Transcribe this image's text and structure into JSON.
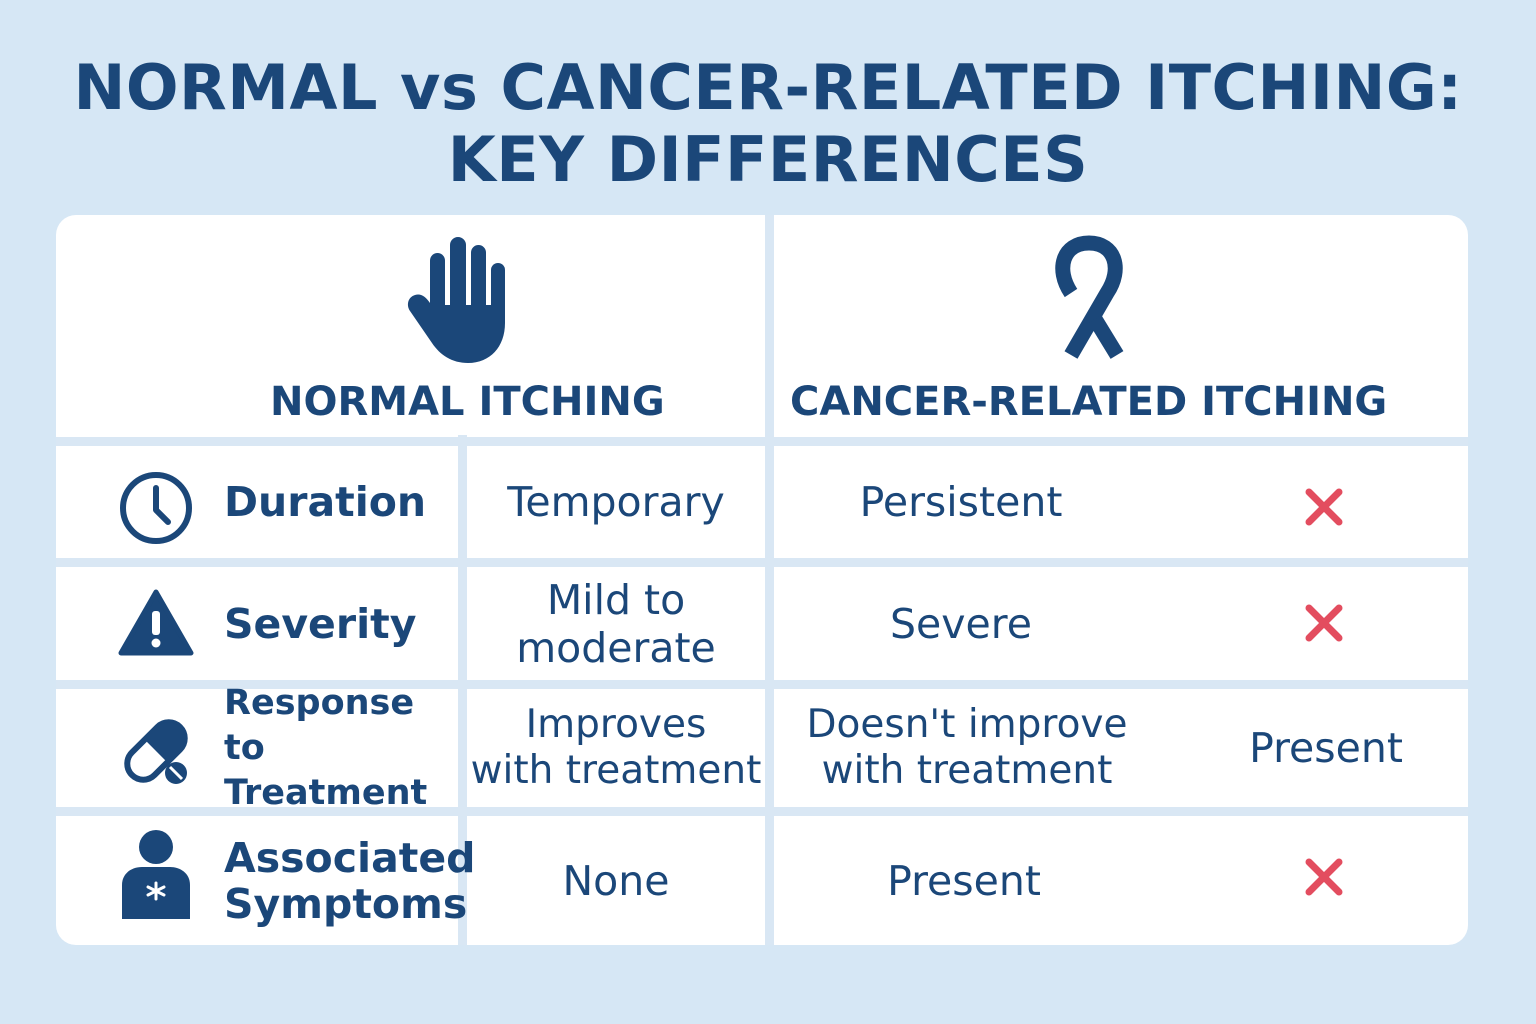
{
  "title": {
    "line1": "NORMAL vs CANCER-RELATED ITCHING:",
    "line2": "KEY DIFFERENCES"
  },
  "columns": {
    "normal": {
      "header": "NORMAL ITCHING",
      "icon": "hand-icon"
    },
    "cancer": {
      "header": "CANCER-RELATED ITCHING",
      "icon": "awareness-ribbon-icon"
    }
  },
  "rows": [
    {
      "icon": "clock-icon",
      "label_line1": "Duration",
      "label_line2": "",
      "normal_line1": "Temporary",
      "normal_line2": "",
      "cancer_line1": "Persistent",
      "cancer_line2": "",
      "extra": "",
      "mark": "x-mark"
    },
    {
      "icon": "warning-icon",
      "label_line1": "Severity",
      "label_line2": "",
      "normal_line1": "Mild to",
      "normal_line2": "moderate",
      "cancer_line1": "Severe",
      "cancer_line2": "",
      "extra": "",
      "mark": "x-mark"
    },
    {
      "icon": "pill-icon",
      "label_line1": "Response",
      "label_line2": "to Treatment",
      "normal_line1": "Improves",
      "normal_line2": "with treatment",
      "cancer_line1": "Doesn't improve",
      "cancer_line2": "with treatment",
      "extra": "Present",
      "mark": ""
    },
    {
      "icon": "person-icon",
      "label_line1": "Associated",
      "label_line2": "Symptoms",
      "normal_line1": "None",
      "normal_line2": "",
      "cancer_line1": "Present",
      "cancer_line2": "",
      "extra": "",
      "mark": "x-mark"
    }
  ],
  "colors": {
    "background": "#d6e7f5",
    "text": "#1b4779",
    "card": "#ffffff",
    "divider": "#d9e7f4",
    "x_mark": "#e34d5f"
  }
}
